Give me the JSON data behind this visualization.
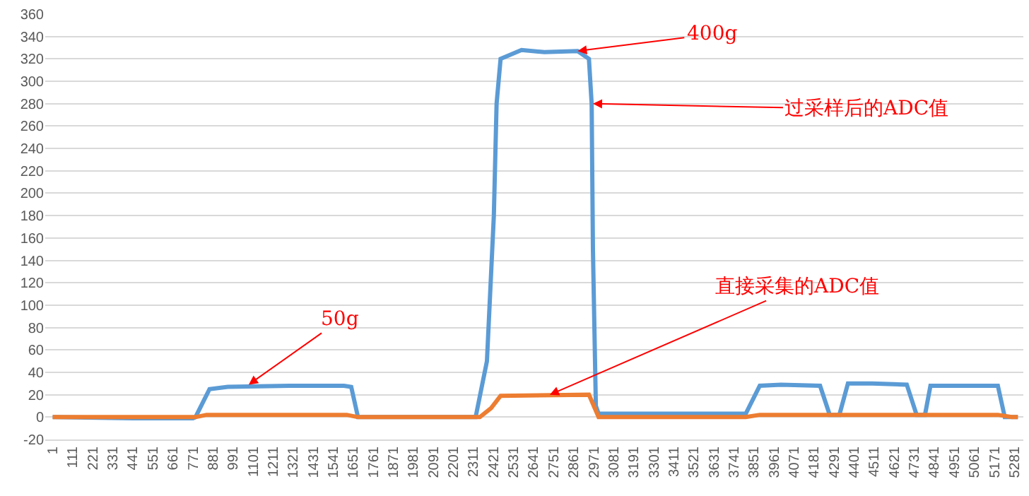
{
  "chart_data": {
    "type": "line",
    "xlim": [
      -40,
      5330
    ],
    "xticks": [
      1,
      111,
      221,
      331,
      441,
      551,
      661,
      771,
      881,
      991,
      1101,
      1211,
      1321,
      1431,
      1541,
      1651,
      1761,
      1871,
      1981,
      2091,
      2201,
      2311,
      2421,
      2531,
      2641,
      2751,
      2861,
      2971,
      3081,
      3191,
      3301,
      3411,
      3521,
      3631,
      3741,
      3851,
      3961,
      4071,
      4181,
      4291,
      4401,
      4511,
      4621,
      4731,
      4841,
      4951,
      5061,
      5171,
      5281
    ],
    "ylim": [
      -20,
      360
    ],
    "yticks": [
      -20,
      0,
      20,
      40,
      60,
      80,
      100,
      120,
      140,
      160,
      180,
      200,
      220,
      240,
      260,
      280,
      300,
      320,
      340,
      360
    ],
    "grid": "y",
    "legend": false,
    "marker": "none",
    "line_style": "solid",
    "series": [
      {
        "color": "#5b9bd5",
        "x": [
          1,
          441,
          771,
          785,
          862,
          962,
          1300,
          1600,
          1640,
          1677,
          2000,
          2323,
          2385,
          2423,
          2438,
          2460,
          2575,
          2700,
          2883,
          2945,
          2960,
          2967,
          2983,
          2998,
          3400,
          3806,
          3883,
          4000,
          4214,
          4267,
          4320,
          4367,
          4500,
          4690,
          4744,
          4790,
          4820,
          5000,
          5190,
          5228,
          5300
        ],
        "values": [
          0,
          -1,
          -1,
          0,
          25,
          27,
          28,
          28,
          27,
          0,
          0,
          0,
          50,
          180,
          280,
          320,
          328,
          326,
          327,
          320,
          280,
          150,
          10,
          3,
          3,
          3,
          28,
          29,
          28,
          2,
          2,
          30,
          30,
          29,
          2,
          2,
          28,
          28,
          28,
          0,
          0
        ]
      },
      {
        "color": "#ed7d31",
        "x": [
          1,
          785,
          846,
          1615,
          1677,
          2346,
          2408,
          2460,
          2945,
          2998,
          3806,
          3883,
          5190,
          5266,
          5300
        ],
        "values": [
          0,
          0,
          2,
          2,
          0,
          0,
          8,
          19,
          20,
          0,
          0,
          2,
          2,
          0,
          0
        ]
      }
    ],
    "annotations": [
      {
        "text": "50g",
        "x": 1077,
        "y": 29
      },
      {
        "text": "400g",
        "x": 2883,
        "y": 327
      },
      {
        "text": "过采样后的ADC值",
        "x": 2967,
        "y": 280
      },
      {
        "text": "直接采集的ADC值",
        "x": 2730,
        "y": 20
      }
    ]
  }
}
